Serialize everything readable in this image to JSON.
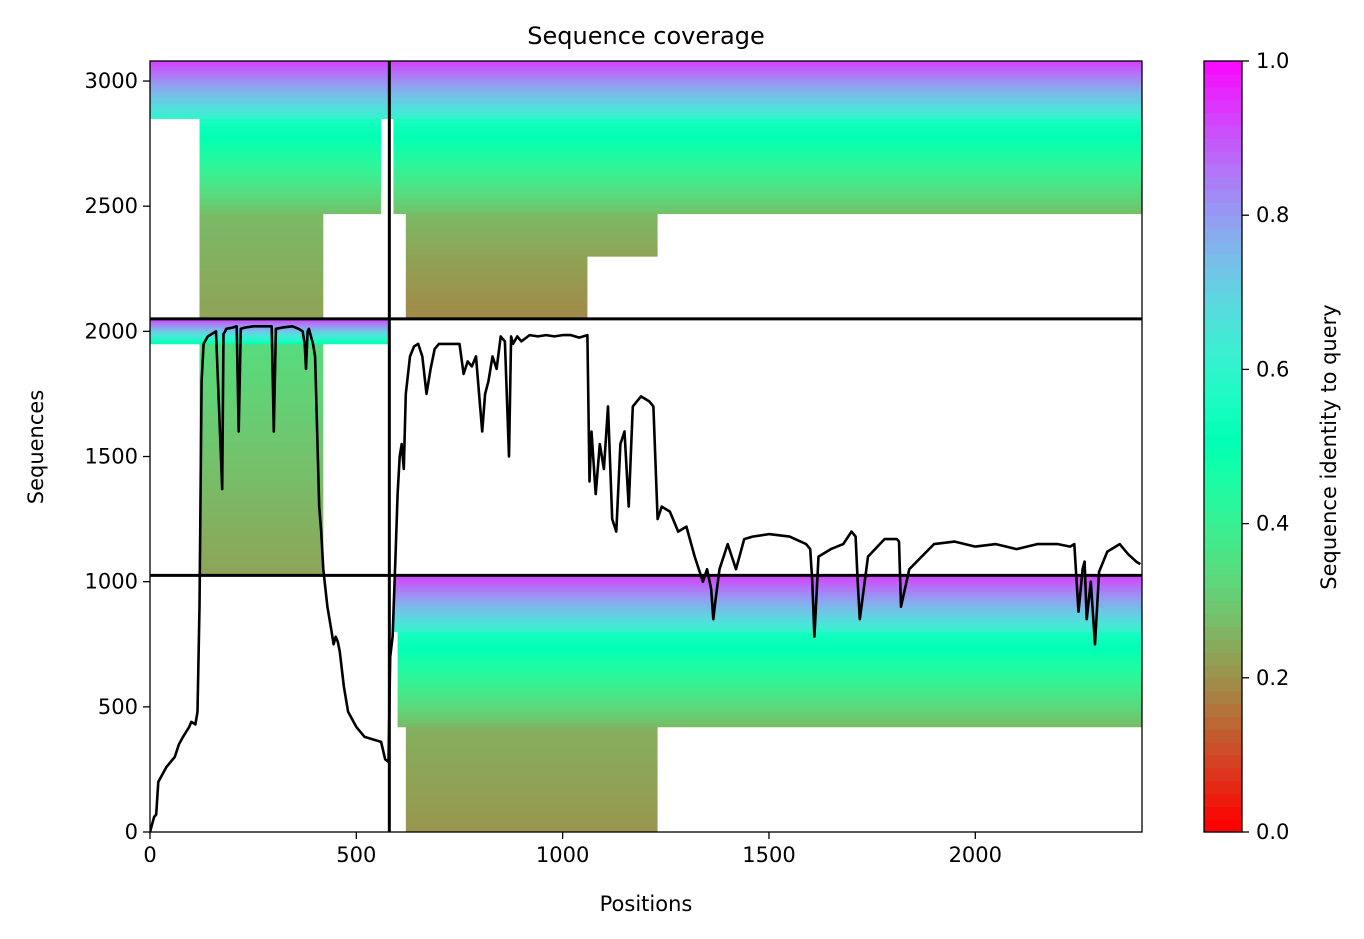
{
  "chart_data": {
    "type": "heatmap",
    "title": "Sequence coverage",
    "xlabel": "Positions",
    "ylabel": "Sequences",
    "xlim": [
      0,
      2404
    ],
    "ylim": [
      0,
      3080
    ],
    "xticks": [
      0,
      500,
      1000,
      1500,
      2000
    ],
    "yticks": [
      0,
      500,
      1000,
      1500,
      2000,
      2500,
      3000
    ],
    "colorbar": {
      "label": "Sequence identity to query",
      "range": [
        0.0,
        1.0
      ],
      "ticks": [
        "0.0",
        "0.2",
        "0.4",
        "0.6",
        "0.8",
        "1.0"
      ],
      "colormap": "rainbow"
    },
    "chain_boundaries": {
      "x": [
        580
      ],
      "y": [
        1025,
        2050
      ]
    },
    "blocks": [
      {
        "name": "chain-A-hits",
        "x0": 0,
        "x1": 580,
        "y0": 2050,
        "y1": 3080,
        "segments": [
          {
            "y0": 2050,
            "y1": 2470,
            "x0": 120,
            "x1": 420,
            "id0": 0.22,
            "id1": 0.26
          },
          {
            "y0": 2470,
            "y1": 2850,
            "x0": 120,
            "x1": 560,
            "id0": 0.27,
            "id1": 0.55
          },
          {
            "y0": 2850,
            "y1": 3080,
            "x0": 0,
            "x1": 580,
            "id0": 0.6,
            "id1": 0.92
          }
        ]
      },
      {
        "name": "chain-B-hits-top",
        "x0": 580,
        "x1": 2404,
        "y0": 2050,
        "y1": 3080,
        "segments": [
          {
            "y0": 2050,
            "y1": 2300,
            "x0": 620,
            "x1": 1060,
            "id0": 0.18,
            "id1": 0.22
          },
          {
            "y0": 2300,
            "y1": 2470,
            "x0": 620,
            "x1": 1230,
            "id0": 0.22,
            "id1": 0.26
          },
          {
            "y0": 2470,
            "y1": 2850,
            "x0": 590,
            "x1": 2404,
            "id0": 0.27,
            "id1": 0.55
          },
          {
            "y0": 2850,
            "y1": 3080,
            "x0": 580,
            "x1": 2404,
            "id0": 0.6,
            "id1": 0.92
          }
        ]
      },
      {
        "name": "chain-A-hits-mid",
        "x0": 0,
        "x1": 580,
        "y0": 1025,
        "y1": 2050,
        "segments": [
          {
            "y0": 1025,
            "y1": 1950,
            "x0": 120,
            "x1": 420,
            "id0": 0.22,
            "id1": 0.33
          },
          {
            "y0": 1950,
            "y1": 2050,
            "x0": 0,
            "x1": 580,
            "id0": 0.5,
            "id1": 0.92
          }
        ]
      },
      {
        "name": "chain-B-hits-bottom",
        "x0": 580,
        "x1": 2404,
        "y0": 0,
        "y1": 1025,
        "segments": [
          {
            "y0": 0,
            "y1": 420,
            "x0": 620,
            "x1": 1230,
            "id0": 0.2,
            "id1": 0.24
          },
          {
            "y0": 420,
            "y1": 800,
            "x0": 600,
            "x1": 2404,
            "id0": 0.26,
            "id1": 0.55
          },
          {
            "y0": 800,
            "y1": 1025,
            "x0": 590,
            "x1": 2404,
            "id0": 0.6,
            "id1": 0.92
          }
        ]
      }
    ],
    "series": [
      {
        "type": "line",
        "color": "#000000",
        "x": [
          0,
          10,
          15,
          20,
          40,
          60,
          70,
          80,
          95,
          100,
          110,
          115,
          120,
          125,
          130,
          140,
          150,
          160,
          175,
          178,
          182,
          185,
          200,
          210,
          215,
          220,
          230,
          250,
          270,
          295,
          300,
          305,
          320,
          345,
          360,
          370,
          375,
          378,
          382,
          385,
          395,
          400,
          410,
          415,
          420,
          430,
          440,
          445,
          450,
          455,
          460,
          470,
          480,
          500,
          520,
          540,
          560,
          570,
          578,
          582,
          588,
          595,
          600,
          605,
          610,
          615,
          620,
          630,
          640,
          650,
          660,
          670,
          680,
          690,
          700,
          720,
          750,
          760,
          770,
          780,
          790,
          800,
          805,
          812,
          820,
          830,
          840,
          850,
          860,
          870,
          875,
          880,
          890,
          900,
          920,
          940,
          960,
          980,
          1000,
          1020,
          1040,
          1060,
          1065,
          1070,
          1080,
          1090,
          1100,
          1110,
          1120,
          1130,
          1140,
          1150,
          1160,
          1170,
          1190,
          1210,
          1220,
          1230,
          1240,
          1260,
          1280,
          1300,
          1320,
          1340,
          1350,
          1360,
          1365,
          1370,
          1380,
          1400,
          1420,
          1440,
          1460,
          1500,
          1550,
          1590,
          1600,
          1605,
          1610,
          1620,
          1650,
          1680,
          1700,
          1710,
          1715,
          1720,
          1740,
          1780,
          1800,
          1810,
          1815,
          1820,
          1840,
          1900,
          1950,
          2000,
          2050,
          2100,
          2150,
          2200,
          2230,
          2240,
          2250,
          2260,
          2265,
          2270,
          2280,
          2290,
          2300,
          2320,
          2350,
          2370,
          2390,
          2400
        ],
        "y": [
          0,
          60,
          70,
          200,
          260,
          300,
          350,
          380,
          420,
          440,
          430,
          480,
          900,
          1800,
          1950,
          1980,
          1990,
          2000,
          1370,
          1990,
          2000,
          2010,
          2015,
          2020,
          1600,
          2010,
          2015,
          2020,
          2020,
          2020,
          1600,
          2010,
          2015,
          2020,
          2010,
          2000,
          1950,
          1850,
          2000,
          2010,
          1950,
          1900,
          1300,
          1200,
          1050,
          900,
          800,
          750,
          780,
          760,
          720,
          580,
          480,
          420,
          380,
          370,
          360,
          290,
          280,
          700,
          780,
          1100,
          1350,
          1500,
          1550,
          1450,
          1750,
          1900,
          1940,
          1950,
          1900,
          1750,
          1850,
          1930,
          1950,
          1950,
          1950,
          1830,
          1880,
          1860,
          1900,
          1700,
          1600,
          1750,
          1800,
          1900,
          1850,
          1980,
          1960,
          1500,
          1980,
          1950,
          1980,
          1960,
          1985,
          1980,
          1985,
          1980,
          1985,
          1985,
          1975,
          1985,
          1400,
          1600,
          1350,
          1550,
          1450,
          1700,
          1250,
          1200,
          1550,
          1600,
          1300,
          1700,
          1740,
          1720,
          1700,
          1250,
          1300,
          1280,
          1200,
          1220,
          1100,
          1000,
          1050,
          970,
          850,
          920,
          1050,
          1150,
          1050,
          1170,
          1180,
          1190,
          1180,
          1150,
          1130,
          1000,
          780,
          1100,
          1130,
          1150,
          1200,
          1180,
          1000,
          850,
          1100,
          1170,
          1170,
          1170,
          1160,
          900,
          1050,
          1150,
          1160,
          1140,
          1150,
          1130,
          1150,
          1150,
          1140,
          1150,
          880,
          1050,
          1080,
          850,
          1000,
          750,
          1040,
          1120,
          1150,
          1110,
          1080,
          1070
        ]
      }
    ]
  }
}
